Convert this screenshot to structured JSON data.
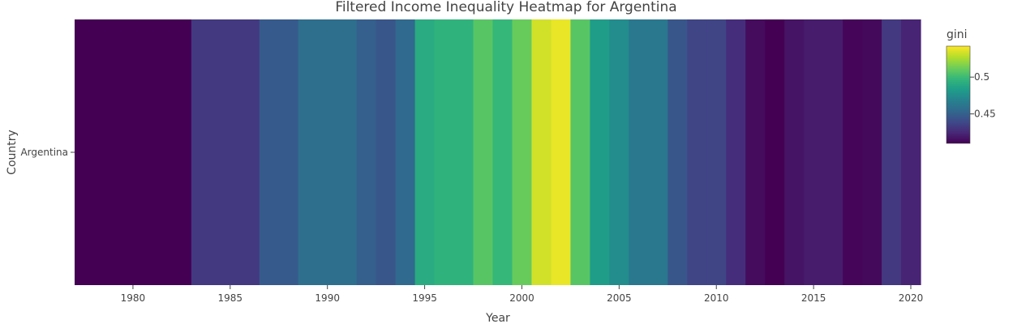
{
  "chart_data": {
    "type": "heatmap",
    "title": "Filtered Income Inequality Heatmap for Argentina",
    "xlabel": "Year",
    "ylabel": "Country",
    "y_categories": [
      "Argentina"
    ],
    "xlim": [
      1977,
      2020.5
    ],
    "x_ticks": [
      1980,
      1985,
      1990,
      1995,
      2000,
      2005,
      2010,
      2015,
      2020
    ],
    "colorscale": "Viridis",
    "colorbar": {
      "title": "gini",
      "range": [
        0.41,
        0.542
      ],
      "ticks": [
        0.45,
        0.5
      ],
      "tick_labels": [
        "0.45",
        "0.5"
      ]
    },
    "cells": [
      {
        "x": 1980,
        "value": 0.409
      },
      {
        "x": 1986,
        "value": 0.432
      },
      {
        "x": 1987,
        "value": 0.447
      },
      {
        "x": 1988,
        "value": 0.447
      },
      {
        "x": 1989,
        "value": 0.458
      },
      {
        "x": 1990,
        "value": 0.458
      },
      {
        "x": 1991,
        "value": 0.458
      },
      {
        "x": 1992,
        "value": 0.45
      },
      {
        "x": 1993,
        "value": 0.445
      },
      {
        "x": 1994,
        "value": 0.455
      },
      {
        "x": 1995,
        "value": 0.491
      },
      {
        "x": 1996,
        "value": 0.495
      },
      {
        "x": 1997,
        "value": 0.495
      },
      {
        "x": 1998,
        "value": 0.507
      },
      {
        "x": 1999,
        "value": 0.498
      },
      {
        "x": 2000,
        "value": 0.511
      },
      {
        "x": 2001,
        "value": 0.533
      },
      {
        "x": 2002,
        "value": 0.538
      },
      {
        "x": 2003,
        "value": 0.507
      },
      {
        "x": 2004,
        "value": 0.483
      },
      {
        "x": 2005,
        "value": 0.474
      },
      {
        "x": 2006,
        "value": 0.463
      },
      {
        "x": 2007,
        "value": 0.463
      },
      {
        "x": 2008,
        "value": 0.445
      },
      {
        "x": 2009,
        "value": 0.437
      },
      {
        "x": 2010,
        "value": 0.437
      },
      {
        "x": 2011,
        "value": 0.427
      },
      {
        "x": 2012,
        "value": 0.414
      },
      {
        "x": 2013,
        "value": 0.41
      },
      {
        "x": 2014,
        "value": 0.417
      },
      {
        "x": 2015,
        "value": 0.42
      },
      {
        "x": 2016,
        "value": 0.42
      },
      {
        "x": 2017,
        "value": 0.412
      },
      {
        "x": 2018,
        "value": 0.413
      },
      {
        "x": 2019,
        "value": 0.432
      },
      {
        "x": 2020,
        "value": 0.423
      }
    ]
  }
}
